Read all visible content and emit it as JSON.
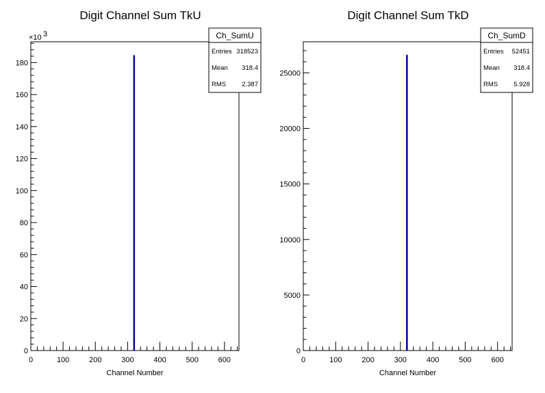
{
  "chart_data": [
    {
      "type": "bar",
      "title": "Digit Channel Sum TkU",
      "xlabel": "Channel Number",
      "ylabel": "",
      "xlim": [
        0,
        645
      ],
      "ylim": [
        0,
        193
      ],
      "y_multiplier_label": "×10",
      "y_multiplier_exponent": "3",
      "x_ticks": [
        "0",
        "100",
        "200",
        "300",
        "400",
        "500",
        "600"
      ],
      "y_ticks": [
        "0",
        "20",
        "40",
        "60",
        "80",
        "100",
        "120",
        "140",
        "160",
        "180"
      ],
      "bars": [
        {
          "x": 318,
          "width": 2,
          "value": 184.5
        }
      ],
      "bar_color": "#000099",
      "stats": {
        "name": "Ch_SumU",
        "rows": [
          {
            "label": "Entries",
            "value": "318523"
          },
          {
            "label": "Mean",
            "value": "318.4"
          },
          {
            "label": "RMS",
            "value": "2.387"
          }
        ]
      }
    },
    {
      "type": "bar",
      "title": "Digit Channel Sum TkD",
      "xlabel": "Channel Number",
      "ylabel": "",
      "xlim": [
        0,
        645
      ],
      "ylim": [
        0,
        27800
      ],
      "x_ticks": [
        "0",
        "100",
        "200",
        "300",
        "400",
        "500",
        "600"
      ],
      "y_ticks": [
        "0",
        "5000",
        "10000",
        "15000",
        "20000",
        "25000"
      ],
      "bars": [
        {
          "x": 318,
          "width": 2,
          "value": 26600
        }
      ],
      "bar_color": "#000099",
      "stats": {
        "name": "Ch_SumD",
        "rows": [
          {
            "label": "Entries",
            "value": "52451"
          },
          {
            "label": "Mean",
            "value": "318.4"
          },
          {
            "label": "RMS",
            "value": "5.928"
          }
        ]
      }
    }
  ]
}
